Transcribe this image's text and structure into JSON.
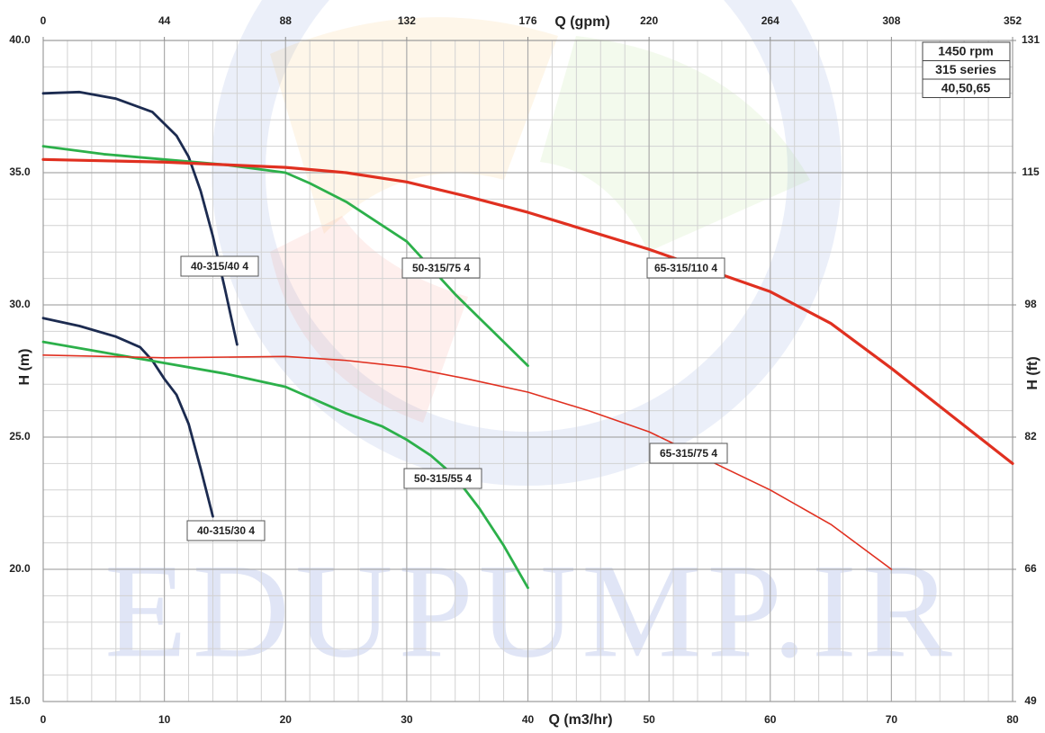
{
  "chart_data": {
    "type": "line",
    "x_label": "Q (m3/hr)",
    "x2_label": "Q (gpm)",
    "y_label": "H (m)",
    "y2_label": "H (ft)",
    "watermark": "EDUPUMP.IR",
    "info_box": [
      "1450 rpm",
      "315 series",
      "40,50,65"
    ],
    "xlim": [
      0,
      80
    ],
    "xticks": [
      0,
      10,
      20,
      30,
      40,
      50,
      60,
      70,
      80
    ],
    "x2lim": [
      0,
      352
    ],
    "x2ticks": [
      0,
      44,
      88,
      132,
      176,
      220,
      264,
      308,
      352
    ],
    "ylim": [
      15,
      40
    ],
    "yticks": [
      {
        "value": 15,
        "label": "15.0"
      },
      {
        "value": 20,
        "label": "20.0"
      },
      {
        "value": 25,
        "label": "25.0"
      },
      {
        "value": 30,
        "label": "30.0"
      },
      {
        "value": 35,
        "label": "35.0"
      },
      {
        "value": 40,
        "label": "40.0"
      }
    ],
    "y2lim": [
      49.2,
      131.2
    ],
    "y2ticks": [
      {
        "value": 49.2,
        "label": "49"
      },
      {
        "value": 65.6,
        "label": "66"
      },
      82,
      {
        "value": 98.4,
        "label": "98"
      },
      {
        "value": 114.8,
        "label": "115"
      },
      {
        "value": 131.2,
        "label": "131"
      }
    ],
    "grid": true,
    "series": [
      {
        "name": "40-315/40 4",
        "color": "#1c2b50",
        "x": [
          0,
          3,
          6,
          9,
          11,
          12,
          13,
          14,
          15,
          16
        ],
        "values": [
          38,
          38.05,
          37.8,
          37.3,
          36.4,
          35.6,
          34.3,
          32.6,
          30.6,
          28.5
        ]
      },
      {
        "name": "40-315/30 4",
        "color": "#1c2b50",
        "x": [
          0,
          3,
          6,
          8,
          9,
          10,
          11,
          12,
          13,
          14
        ],
        "values": [
          29.5,
          29.2,
          28.8,
          28.4,
          27.9,
          27.2,
          26.6,
          25.5,
          23.8,
          22
        ]
      },
      {
        "name": "50-315/75 4",
        "color": "#2cb04a",
        "x": [
          0,
          5,
          10,
          15,
          20,
          22,
          25,
          28,
          30,
          32,
          34,
          36,
          38,
          40
        ],
        "values": [
          36,
          35.7,
          35.5,
          35.3,
          35,
          34.6,
          33.9,
          33,
          32.4,
          31.4,
          30.4,
          29.5,
          28.6,
          27.7
        ]
      },
      {
        "name": "50-315/55 4",
        "color": "#2cb04a",
        "x": [
          0,
          5,
          10,
          15,
          20,
          22,
          25,
          28,
          30,
          32,
          34,
          36,
          38,
          40
        ],
        "values": [
          28.6,
          28.2,
          27.8,
          27.4,
          26.9,
          26.5,
          25.9,
          25.4,
          24.9,
          24.3,
          23.5,
          22.3,
          20.9,
          19.3
        ]
      },
      {
        "name": "65-315/110 4",
        "color": "#e03020",
        "x": [
          0,
          10,
          20,
          25,
          30,
          35,
          40,
          45,
          50,
          55,
          60,
          65,
          70,
          75,
          80
        ],
        "values": [
          35.5,
          35.4,
          35.2,
          35,
          34.65,
          34.1,
          33.5,
          32.8,
          32.1,
          31.3,
          30.5,
          29.3,
          27.6,
          25.8,
          24
        ]
      },
      {
        "name": "65-315/75 4",
        "color": "#e03020",
        "x": [
          0,
          10,
          20,
          25,
          30,
          35,
          40,
          45,
          50,
          55,
          60,
          65,
          70
        ],
        "values": [
          28.1,
          28,
          28.05,
          27.9,
          27.65,
          27.2,
          26.7,
          26,
          25.2,
          24.1,
          23,
          21.7,
          20
        ]
      }
    ]
  }
}
